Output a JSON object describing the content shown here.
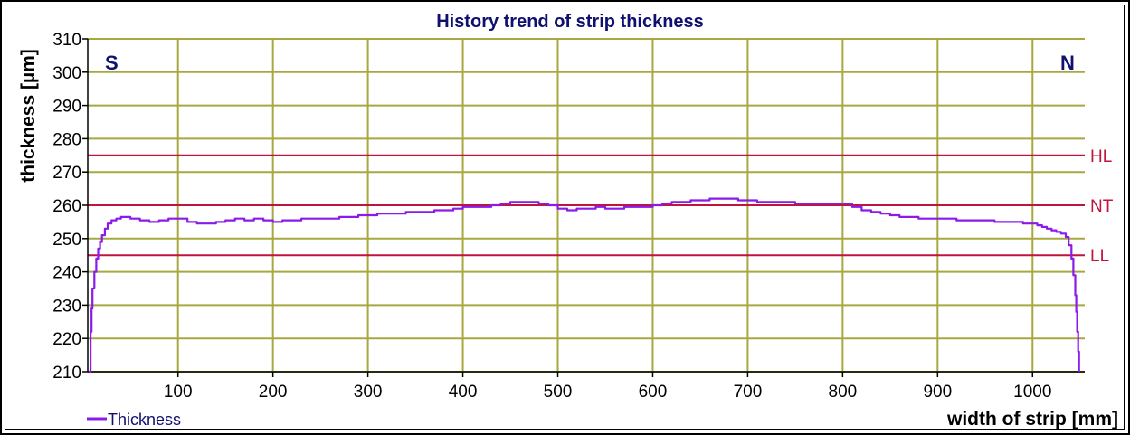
{
  "chart_data": {
    "type": "line",
    "title": "History trend of strip thickness",
    "xlabel": "width of strip [mm]",
    "ylabel": "thickness [µm]",
    "xlim": [
      5,
      1055
    ],
    "ylim": [
      210,
      310
    ],
    "x_ticks": [
      100,
      200,
      300,
      400,
      500,
      600,
      700,
      800,
      900,
      1000
    ],
    "y_ticks": [
      210,
      220,
      230,
      240,
      250,
      260,
      270,
      280,
      290,
      300,
      310
    ],
    "grid": true,
    "side_labels": {
      "left": "S",
      "right": "N"
    },
    "reference_lines": [
      {
        "name": "HL",
        "value": 275
      },
      {
        "name": "NT",
        "value": 260
      },
      {
        "name": "LL",
        "value": 245
      }
    ],
    "series": [
      {
        "name": "Thickness",
        "color": "#8a1be8",
        "x": [
          6,
          8,
          9,
          10,
          12,
          14,
          16,
          18,
          20,
          23,
          26,
          30,
          35,
          40,
          50,
          60,
          70,
          80,
          90,
          100,
          110,
          120,
          130,
          140,
          150,
          160,
          170,
          180,
          190,
          200,
          210,
          220,
          230,
          240,
          250,
          260,
          270,
          280,
          290,
          300,
          310,
          320,
          330,
          340,
          350,
          360,
          370,
          380,
          390,
          400,
          410,
          420,
          430,
          440,
          450,
          460,
          470,
          480,
          490,
          500,
          510,
          520,
          530,
          540,
          550,
          560,
          570,
          580,
          590,
          600,
          610,
          620,
          630,
          640,
          650,
          660,
          670,
          680,
          690,
          700,
          710,
          720,
          730,
          740,
          750,
          760,
          770,
          780,
          790,
          800,
          810,
          820,
          830,
          840,
          850,
          860,
          870,
          880,
          890,
          900,
          910,
          920,
          930,
          940,
          950,
          960,
          970,
          980,
          990,
          1000,
          1005,
          1010,
          1015,
          1020,
          1025,
          1030,
          1035,
          1038,
          1041,
          1043,
          1045,
          1046,
          1047,
          1048,
          1049
        ],
        "y": [
          210,
          222,
          229,
          235,
          240,
          244,
          247,
          249,
          251,
          253,
          254.5,
          255.5,
          256,
          256.5,
          256,
          255.5,
          255,
          255.5,
          256,
          256,
          255,
          254.5,
          254.5,
          255,
          255.5,
          256,
          255.5,
          256,
          255.5,
          255,
          255.5,
          255.5,
          256,
          256,
          256,
          256,
          256.5,
          256.5,
          257,
          257,
          257.5,
          257.5,
          257.5,
          258,
          258,
          258,
          258.5,
          258.5,
          259,
          259.5,
          259.5,
          259.5,
          260,
          260.5,
          261,
          261,
          261,
          260.5,
          260,
          259,
          258.5,
          259,
          259,
          259.5,
          259,
          259,
          259.5,
          259.5,
          259.5,
          260,
          260.5,
          261,
          261,
          261.5,
          261.5,
          262,
          262,
          262,
          261.5,
          261.5,
          261,
          261,
          261,
          261,
          260.5,
          260.5,
          260.5,
          260.5,
          260.5,
          260.5,
          259.5,
          258.5,
          258,
          257.5,
          257,
          256.5,
          256.5,
          256,
          256,
          256,
          256,
          255.5,
          255.5,
          255.5,
          255.5,
          255,
          255,
          255,
          254.5,
          254.5,
          254,
          253.5,
          253,
          252.5,
          252,
          251.5,
          250.5,
          248,
          244,
          239,
          233,
          228,
          222,
          216,
          210
        ]
      }
    ]
  }
}
